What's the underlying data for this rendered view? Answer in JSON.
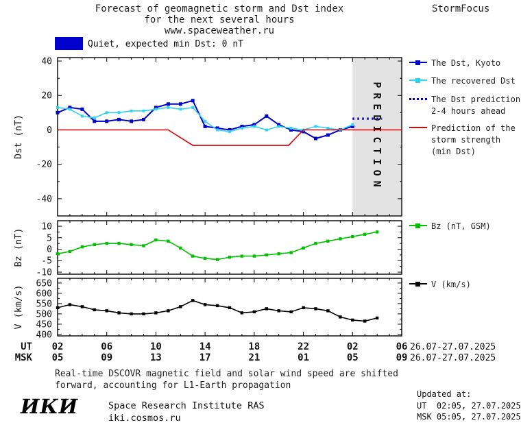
{
  "header": {
    "title_line1": "Forecast of geomagnetic storm and Dst index",
    "title_line2": "for the next several hours",
    "title_line3": "www.spaceweather.ru",
    "brand": "StormFocus"
  },
  "status": {
    "label": "Quiet, expected min Dst: 0 nT",
    "color": "#0000cc"
  },
  "legend": {
    "items": [
      {
        "id": "dst-kyoto",
        "lines": [
          "The Dst, Kyoto"
        ],
        "color": "#0000cc",
        "marker": true
      },
      {
        "id": "recovered-dst",
        "lines": [
          "The recovered Dst"
        ],
        "color": "#2fd3ee",
        "marker": true
      },
      {
        "id": "dst-prediction",
        "lines": [
          "The Dst prediction",
          "2-4 hours ahead"
        ],
        "color": "#0000cc",
        "style": "dotted"
      },
      {
        "id": "storm-strength",
        "lines": [
          "Prediction of the",
          "storm strength",
          "(min Dst)"
        ],
        "color": "#e00000"
      },
      {
        "id": "bz",
        "lines": [
          "Bz (nT, GSM)"
        ],
        "color": "#00c000",
        "marker": true
      },
      {
        "id": "v",
        "lines": [
          "V (km/s)"
        ],
        "color": "#000000",
        "marker": true
      }
    ]
  },
  "prediction_band": {
    "label": "PREDICTION",
    "start_hour": 26,
    "end_hour": 30
  },
  "xaxis": {
    "ut_label": "UT",
    "msk_label": "MSK",
    "tick_hours": [
      2,
      6,
      10,
      14,
      18,
      22,
      26,
      30
    ],
    "ut_ticks": [
      "02",
      "06",
      "10",
      "14",
      "18",
      "22",
      "02",
      "06"
    ],
    "msk_ticks": [
      "05",
      "09",
      "13",
      "17",
      "21",
      "01",
      "05",
      "09"
    ],
    "ut_date": "26.07-27.07.2025",
    "msk_date": "26.07-27.07.2025"
  },
  "chart_data": [
    {
      "id": "dst",
      "type": "line",
      "title": "Forecast of geomagnetic storm and Dst index",
      "ylabel": "Dst (nT)",
      "ylim": [
        -50,
        42
      ],
      "yticks": [
        40,
        20,
        0,
        -20,
        -40
      ],
      "yticks_minor": [
        30,
        10,
        -10,
        -30
      ],
      "xlim": [
        2,
        30
      ],
      "prediction_band": true,
      "series": [
        {
          "id": "dst-kyoto",
          "name": "The Dst, Kyoto",
          "color": "#0000cc",
          "width": 2,
          "marker": "square",
          "msize": 5,
          "x": [
            2,
            3,
            4,
            5,
            6,
            7,
            8,
            9,
            10,
            11,
            12,
            13,
            14,
            15,
            16,
            17,
            18,
            19,
            20,
            21,
            22,
            23,
            24,
            25,
            26
          ],
          "y": [
            10,
            13,
            12,
            5,
            5,
            6,
            5,
            6,
            13,
            15,
            15,
            17,
            2,
            1,
            0,
            2,
            3,
            8,
            3,
            0,
            -1,
            -5,
            -3,
            0,
            2
          ]
        },
        {
          "id": "recovered-dst",
          "name": "The recovered Dst",
          "color": "#2fd3ee",
          "width": 1.6,
          "marker": "square",
          "msize": 4,
          "x": [
            2,
            3,
            4,
            5,
            6,
            7,
            8,
            9,
            10,
            11,
            12,
            13,
            14,
            15,
            16,
            17,
            18,
            19,
            20,
            21,
            22,
            23,
            24,
            25,
            26
          ],
          "y": [
            13,
            12,
            8,
            7,
            10,
            10,
            11,
            11,
            12,
            13,
            12,
            13,
            5,
            0,
            -1,
            1,
            2,
            0,
            2,
            1,
            0,
            2,
            1,
            0,
            3
          ]
        },
        {
          "id": "dst-prediction",
          "name": "The Dst prediction 2-4 hours ahead",
          "color": "#0000cc",
          "style": "dotted",
          "width": 3.2,
          "x": [
            26,
            28.4
          ],
          "y": [
            6.5,
            6.5
          ]
        },
        {
          "id": "storm-strength",
          "name": "Prediction of the storm strength (min Dst)",
          "color": "#e00000",
          "width": 1.6,
          "x": [
            2,
            11,
            13,
            20.8,
            22,
            30
          ],
          "y": [
            0,
            0,
            -9,
            -9,
            0,
            0
          ]
        }
      ]
    },
    {
      "id": "bz",
      "type": "line",
      "ylabel": "Bz (nT)",
      "ylim": [
        -10.9,
        12.4
      ],
      "yticks": [
        10,
        5,
        0,
        -5,
        -10
      ],
      "yticks_minor": [
        7.5,
        2.5,
        -2.5,
        -7.5
      ],
      "xlim": [
        2,
        30
      ],
      "series": [
        {
          "id": "bz",
          "name": "Bz (nT, GSM)",
          "color": "#00c000",
          "width": 1.6,
          "marker": "square",
          "msize": 4.4,
          "x": [
            2,
            3,
            4,
            5,
            6,
            7,
            8,
            9,
            10,
            11,
            12,
            13,
            14,
            15,
            16,
            17,
            18,
            19,
            20,
            21,
            22,
            23,
            24,
            25,
            26,
            27,
            28
          ],
          "y": [
            -2,
            -1,
            1,
            2,
            2.5,
            2.5,
            2,
            1.5,
            4,
            3.5,
            0.5,
            -3,
            -4,
            -4.5,
            -3.5,
            -3,
            -3,
            -2.5,
            -2,
            -1.5,
            0.5,
            2.5,
            3.5,
            4.5,
            5.5,
            6.5,
            7.5
          ]
        }
      ]
    },
    {
      "id": "v",
      "type": "line",
      "ylabel": "V (km/s)",
      "ylim": [
        393,
        673
      ],
      "yticks": [
        650,
        600,
        550,
        500,
        450,
        400
      ],
      "yticks_minor": [
        625,
        575,
        525,
        475,
        425
      ],
      "xlim": [
        2,
        30
      ],
      "series": [
        {
          "id": "v",
          "name": "V (km/s)",
          "color": "#000000",
          "width": 1.6,
          "marker": "square",
          "msize": 4.4,
          "x": [
            2,
            3,
            4,
            5,
            6,
            7,
            8,
            9,
            10,
            11,
            12,
            13,
            14,
            15,
            16,
            17,
            18,
            19,
            20,
            21,
            22,
            23,
            24,
            25,
            26,
            27,
            28
          ],
          "y": [
            530,
            545,
            535,
            520,
            515,
            505,
            500,
            500,
            505,
            515,
            535,
            565,
            545,
            540,
            530,
            505,
            510,
            525,
            515,
            510,
            530,
            525,
            515,
            485,
            470,
            465,
            480
          ]
        }
      ]
    }
  ],
  "footer": {
    "note_line1": "Real-time DSCOVR magnetic field and solar wind speed are shifted",
    "note_line2": "forward, accounting for L1-Earth propagation",
    "updated_label": "Updated at:",
    "updated_ut": "UT  02:05, 27.07.2025",
    "updated_msk": "MSK 05:05, 27.07.2025",
    "logo": "ИКИ",
    "institute": "Space Research Institute RAS",
    "site": "iki.cosmos.ru"
  }
}
